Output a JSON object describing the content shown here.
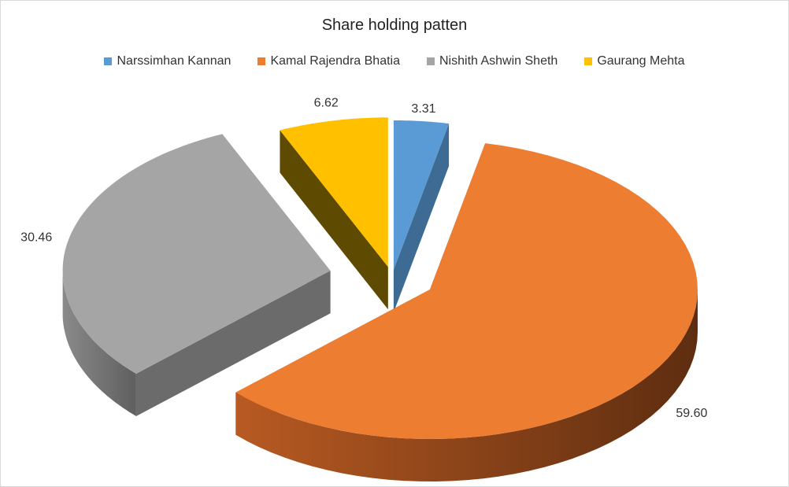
{
  "chart_data": {
    "type": "pie",
    "title": "Share holding patten",
    "legend_position": "top",
    "exploded": true,
    "three_d": true,
    "slices": [
      {
        "name": "Narssimhan Kannan",
        "value": 3.31,
        "label": "3.31",
        "color": "#5b9bd5"
      },
      {
        "name": "Kamal Rajendra Bhatia",
        "value": 59.6,
        "label": "59.60",
        "color": "#ed7d31"
      },
      {
        "name": "Nishith Ashwin Sheth",
        "value": 30.46,
        "label": "30.46",
        "color": "#a5a5a5"
      },
      {
        "name": "Gaurang Mehta",
        "value": 6.62,
        "label": "6.62",
        "color": "#ffc000"
      }
    ]
  }
}
